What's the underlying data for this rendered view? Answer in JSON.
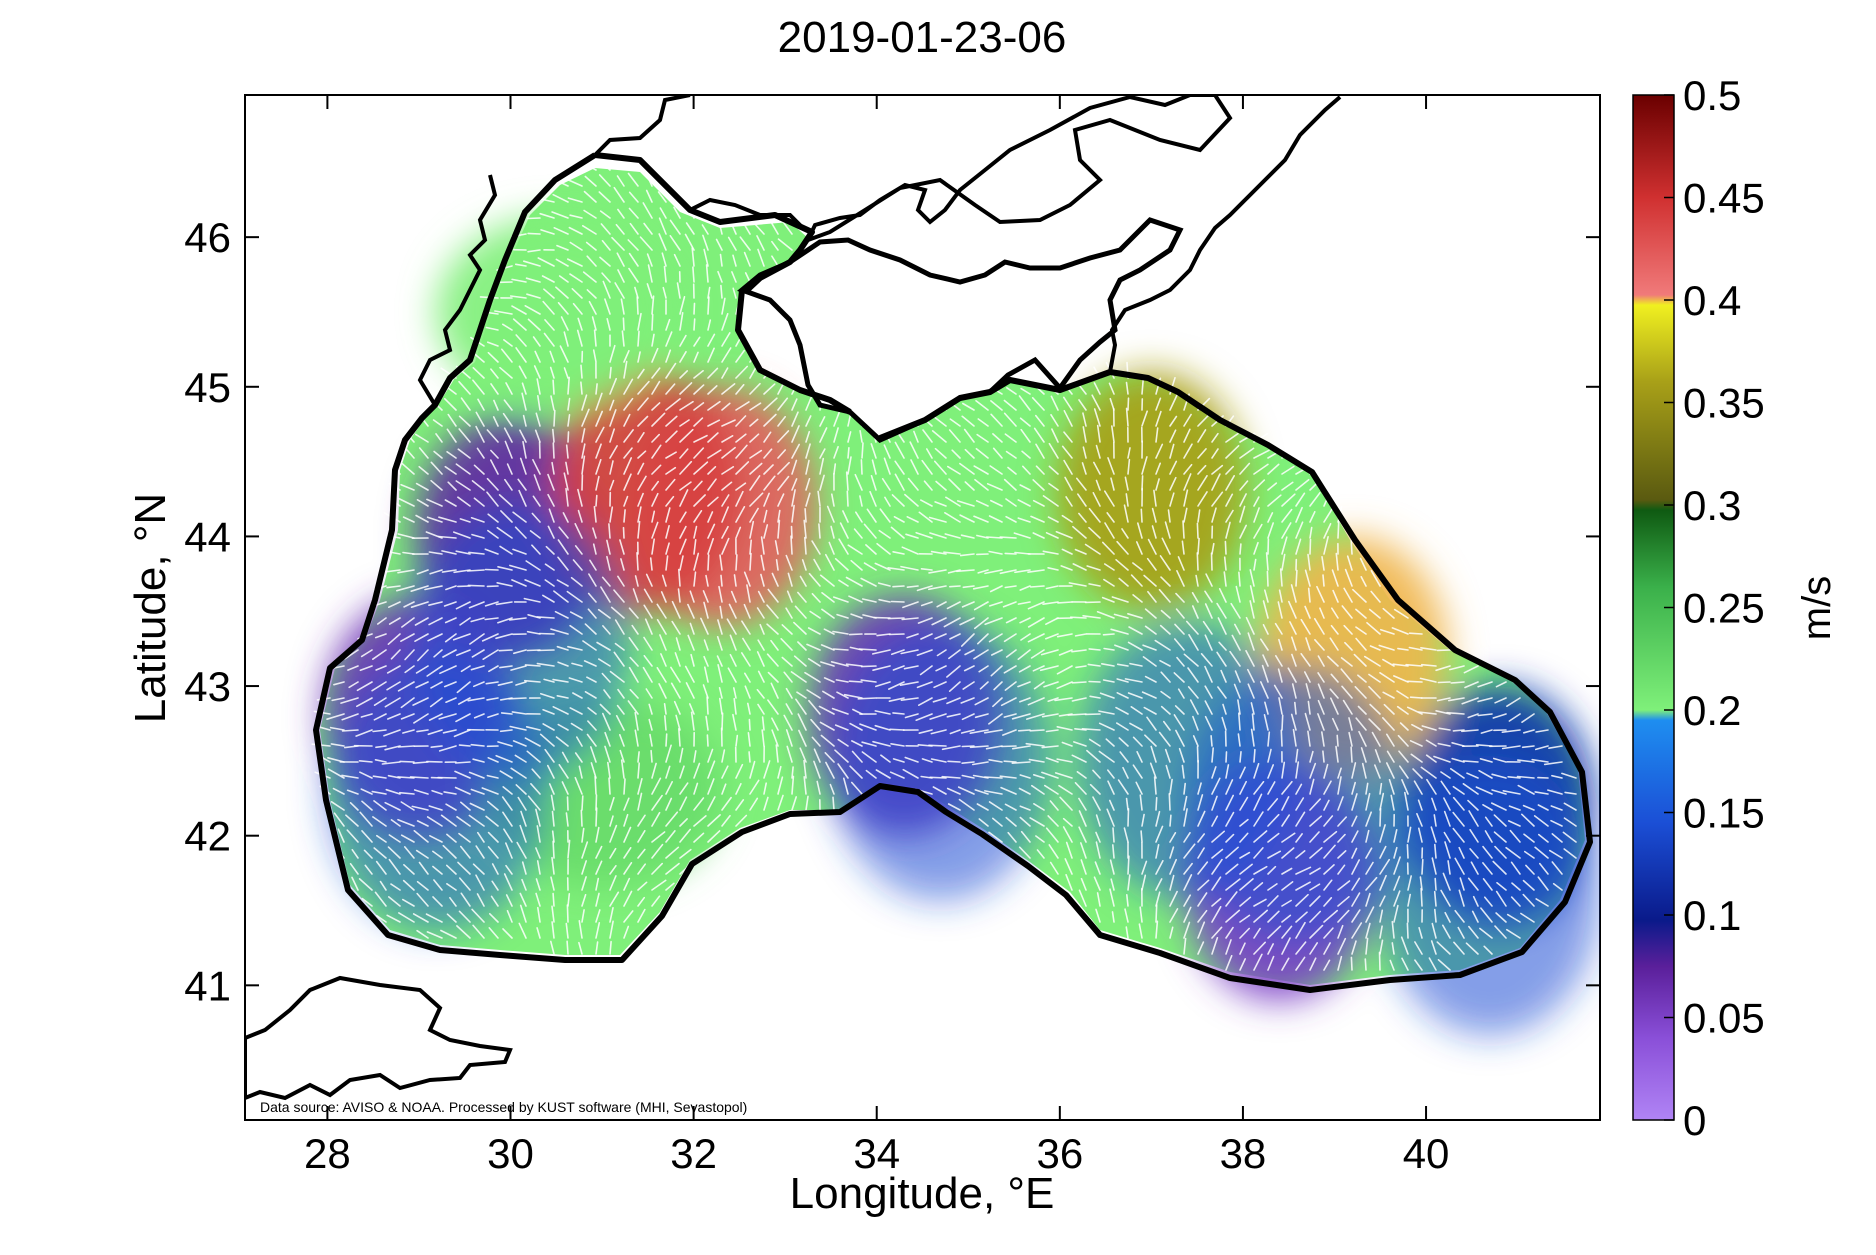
{
  "title": "2019-01-23-06",
  "x_axis": {
    "label": "Longitude, °E",
    "ticks": [
      "28",
      "30",
      "32",
      "34",
      "36",
      "38",
      "40"
    ],
    "range": [
      27.1,
      41.9
    ]
  },
  "y_axis": {
    "label": "Latitude, °N",
    "ticks": [
      "41",
      "42",
      "43",
      "44",
      "45",
      "46"
    ],
    "range": [
      40.1,
      46.95
    ]
  },
  "colorbar": {
    "unit": "m/s",
    "ticks": [
      "0",
      "0.05",
      "0.1",
      "0.15",
      "0.2",
      "0.25",
      "0.3",
      "0.35",
      "0.4",
      "0.45",
      "0.5"
    ],
    "range": [
      0,
      0.5
    ],
    "colormap": [
      "#b084f5",
      "#8a4fd8",
      "#5a1f9a",
      "#0a1a8a",
      "#1b4fd6",
      "#1e8ef0",
      "#7ff07a",
      "#3ab04a",
      "#0f5a12",
      "#9a8a10",
      "#f0f020",
      "#f06a6a",
      "#c02020",
      "#6a0000"
    ]
  },
  "source_note": "Data source: AVISO & NOAA. Processed by KUST software (MHI, Sevastopol)",
  "colors": {
    "coastline": "#000000",
    "land": "#ffffff",
    "arrows": "#ffffff"
  },
  "map_data": {
    "type": "current-speed field with velocity arrows",
    "region": "Black Sea",
    "speed_zones": [
      {
        "lon": 30.0,
        "lat": 44.0,
        "speed": 0.07
      },
      {
        "lon": 29.0,
        "lat": 42.8,
        "speed": 0.06
      },
      {
        "lon": 34.3,
        "lat": 42.8,
        "speed": 0.06
      },
      {
        "lon": 38.4,
        "lat": 41.7,
        "speed": 0.05
      },
      {
        "lon": 32.3,
        "lat": 44.2,
        "speed": 0.42
      },
      {
        "lon": 31.5,
        "lat": 44.3,
        "speed": 0.44
      },
      {
        "lon": 39.2,
        "lat": 43.2,
        "speed": 0.4
      },
      {
        "lon": 37.0,
        "lat": 44.3,
        "speed": 0.36
      },
      {
        "lon": 31.0,
        "lat": 42.3,
        "speed": 0.22
      },
      {
        "lon": 30.5,
        "lat": 45.5,
        "speed": 0.2
      },
      {
        "lon": 40.8,
        "lat": 42.2,
        "speed": 0.12
      }
    ]
  }
}
